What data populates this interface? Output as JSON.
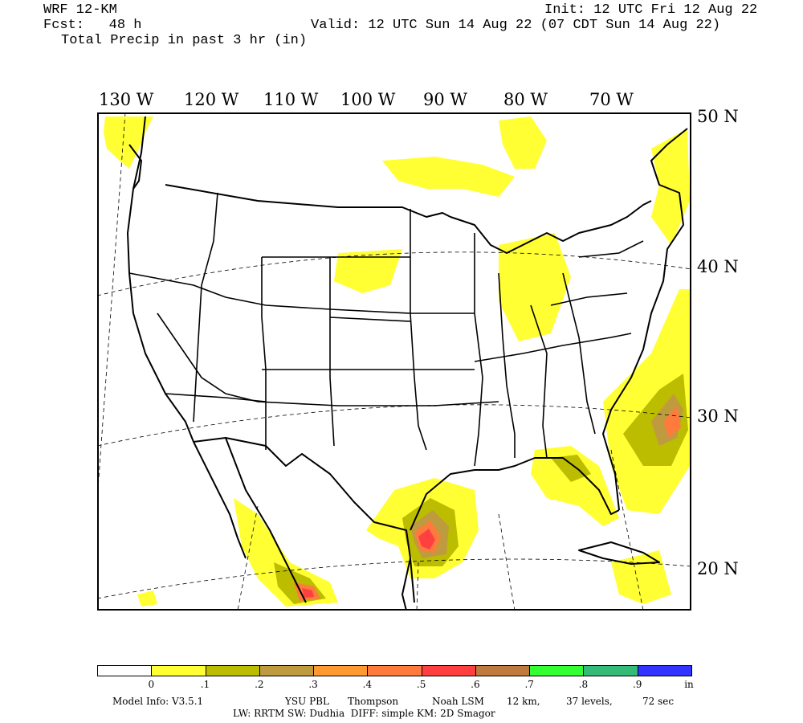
{
  "header": {
    "model": "WRF 12-KM",
    "forecast": "Fcst:   48 h",
    "field": "Total Precip in past 3 hr (in)",
    "init": "Init: 12 UTC Fri 12 Aug 22",
    "valid": "Valid: 12 UTC Sun 14 Aug 22 (07 CDT Sun 14 Aug 22)"
  },
  "map": {
    "lon_labels": [
      "130 W",
      "120 W",
      "110 W",
      "100 W",
      "90 W",
      "80 W",
      "70 W"
    ],
    "lat_labels": [
      "50 N",
      "40 N",
      "30 N",
      "20 N"
    ],
    "precip_regions": [
      {
        "region": "Gulf of Mexico / South Texas coast",
        "max_in": 0.6
      },
      {
        "region": "Western Atlantic off Southeast US",
        "max_in": 0.6
      },
      {
        "region": "Gulf of California / Sinaloa",
        "max_in": 0.6
      },
      {
        "region": "Ohio Valley / Indiana / Ohio",
        "max_in": 0.1
      },
      {
        "region": "Florida / Eastern Gulf",
        "max_in": 0.2
      },
      {
        "region": "Pacific Northwest / British Columbia",
        "max_in": 0.1
      },
      {
        "region": "Great Lakes / Ontario",
        "max_in": 0.1
      },
      {
        "region": "Northern Plains",
        "max_in": 0.1
      },
      {
        "region": "New England / Atlantic Canada",
        "max_in": 0.1
      }
    ]
  },
  "legend": {
    "colors": [
      "#ffffff",
      "#ffff33",
      "#bcbc00",
      "#bf9b3f",
      "#ff9a33",
      "#ff7a3d",
      "#ff4040",
      "#bf7a3f",
      "#33ff33",
      "#33bb77",
      "#3333ff"
    ],
    "ticks": [
      "0",
      ".1",
      ".2",
      ".3",
      ".4",
      ".5",
      ".6",
      ".7",
      ".8",
      ".9"
    ],
    "unit": "in"
  },
  "footer": {
    "line1_a": "Model Info: V3.5.1",
    "line1_b": "YSU PBL",
    "line1_c": "Thompson",
    "line1_d": "Noah LSM",
    "line1_e": "12 km,",
    "line1_f": "37 levels,",
    "line1_g": "72 sec",
    "line2": "LW: RRTM SW: Dudhia  DIFF: simple KM: 2D Smagor"
  }
}
